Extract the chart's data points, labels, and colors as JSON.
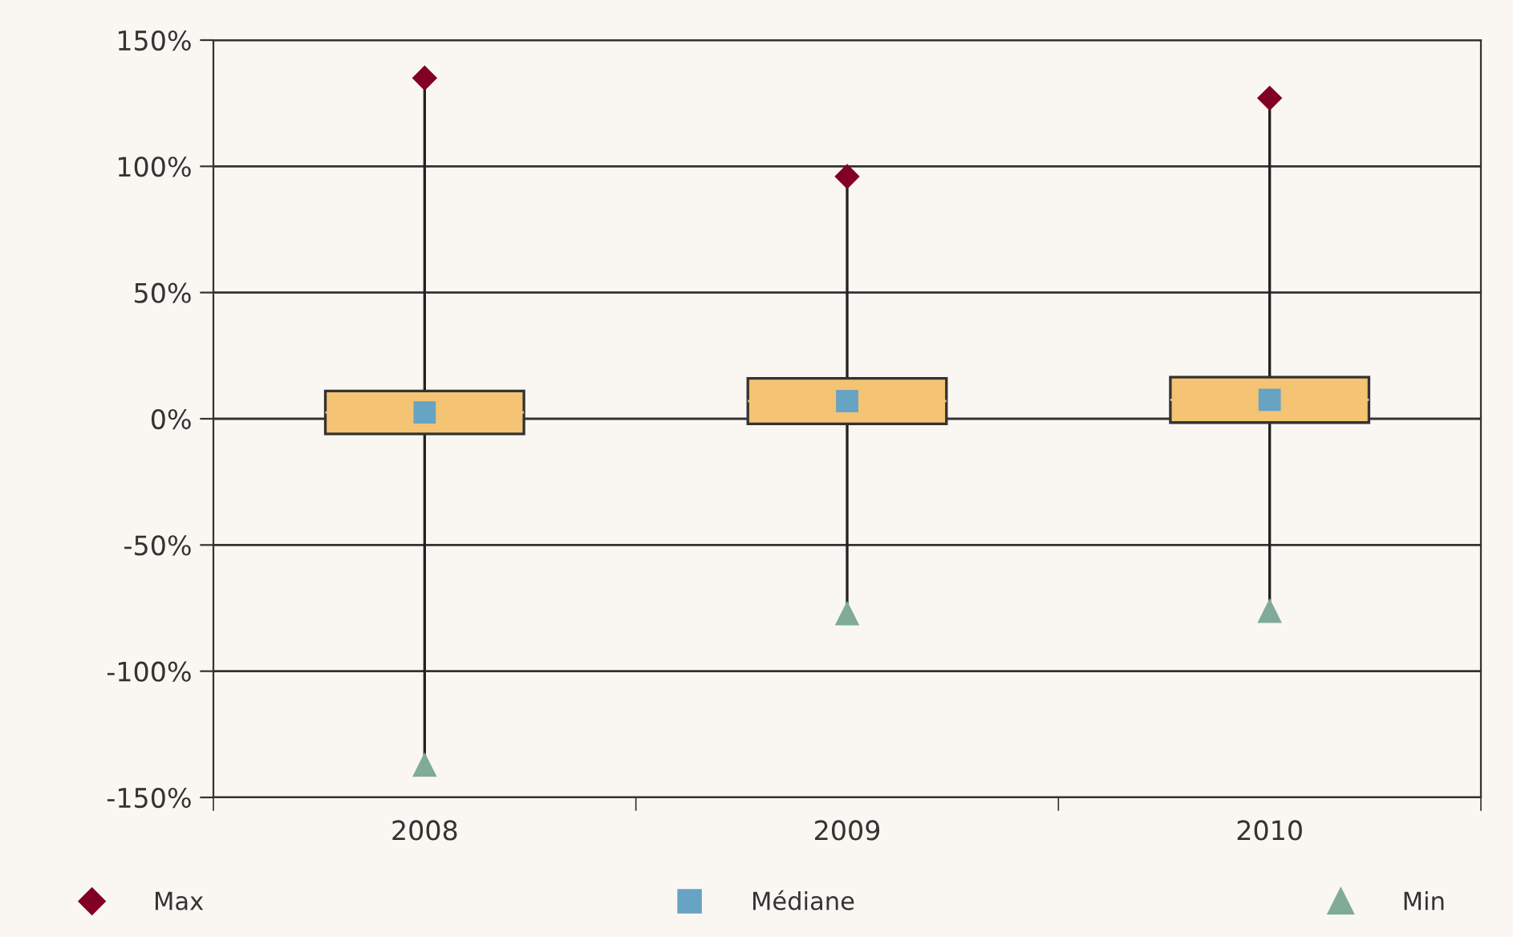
{
  "chart_data": {
    "type": "box",
    "categories": [
      "2008",
      "2009",
      "2010"
    ],
    "boxes": [
      {
        "low": -137,
        "q1": -6,
        "median": 2.5,
        "q3": 11,
        "high": 135
      },
      {
        "low": -77,
        "q1": -2,
        "median": 7,
        "q3": 16,
        "high": 96
      },
      {
        "low": -76,
        "q1": -1.5,
        "median": 7.5,
        "q3": 16.5,
        "high": 127
      }
    ],
    "color": "#f4c373",
    "series": [
      {
        "name": "Max",
        "type": "scatter",
        "marker": "diamond",
        "color": "#820024",
        "values": [
          135,
          96,
          127
        ]
      },
      {
        "name": "Médiane",
        "type": "scatter",
        "marker": "square",
        "color": "#67a3c3",
        "values": [
          2.5,
          7,
          7.5
        ]
      },
      {
        "name": "Min",
        "type": "scatter",
        "marker": "triangle",
        "color": "#7fab98",
        "values": [
          -137,
          -77,
          -76
        ]
      }
    ],
    "ylim": [
      -150,
      150
    ],
    "yticks": [
      {
        "value": -150,
        "label": "-150%"
      },
      {
        "value": -100,
        "label": "-100%"
      },
      {
        "value": -50,
        "label": "-50%"
      },
      {
        "value": 0,
        "label": "0%"
      },
      {
        "value": 50,
        "label": "50%"
      },
      {
        "value": 100,
        "label": "100%"
      },
      {
        "value": 150,
        "label": "150%"
      }
    ],
    "grid": "y",
    "legend": "bottom"
  }
}
